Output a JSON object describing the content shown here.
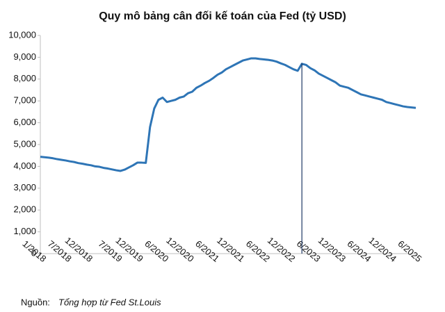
{
  "chart_data": {
    "type": "line",
    "title": "Quy mô bảng cân đối kế toán của Fed (tỷ USD)",
    "x": [
      "1/2018",
      "2/2018",
      "3/2018",
      "4/2018",
      "5/2018",
      "6/2018",
      "7/2018",
      "8/2018",
      "9/2018",
      "10/2018",
      "11/2018",
      "12/2018",
      "1/2019",
      "2/2019",
      "3/2019",
      "4/2019",
      "5/2019",
      "6/2019",
      "7/2019",
      "8/2019",
      "9/2019",
      "10/2019",
      "11/2019",
      "12/2019",
      "1/2020",
      "2/2020",
      "3/2020",
      "4/2020",
      "5/2020",
      "6/2020",
      "7/2020",
      "8/2020",
      "9/2020",
      "10/2020",
      "11/2020",
      "12/2020",
      "1/2021",
      "2/2021",
      "3/2021",
      "4/2021",
      "5/2021",
      "6/2021",
      "7/2021",
      "8/2021",
      "9/2021",
      "10/2021",
      "11/2021",
      "12/2021",
      "1/2022",
      "2/2022",
      "3/2022",
      "4/2022",
      "5/2022",
      "6/2022",
      "7/2022",
      "8/2022",
      "9/2022",
      "10/2022",
      "11/2022",
      "12/2022",
      "1/2023",
      "2/2023",
      "3/2023",
      "4/2023",
      "5/2023",
      "6/2023",
      "7/2023",
      "8/2023",
      "9/2023",
      "10/2023",
      "11/2023",
      "12/2023",
      "1/2024",
      "2/2024",
      "3/2024",
      "4/2024",
      "5/2024",
      "6/2024",
      "7/2024",
      "8/2024",
      "9/2024",
      "10/2024",
      "11/2024",
      "12/2024",
      "1/2025",
      "2/2025",
      "3/2025",
      "4/2025",
      "5/2025",
      "6/2025"
    ],
    "series": [
      {
        "color": "#2e75b6",
        "values": [
          4440,
          4420,
          4400,
          4370,
          4330,
          4300,
          4270,
          4230,
          4200,
          4150,
          4120,
          4080,
          4050,
          4000,
          3980,
          3930,
          3900,
          3860,
          3820,
          3790,
          3850,
          3950,
          4050,
          4170,
          4170,
          4160,
          5800,
          6650,
          7050,
          7150,
          6950,
          7000,
          7050,
          7150,
          7200,
          7350,
          7420,
          7600,
          7700,
          7820,
          7920,
          8050,
          8200,
          8300,
          8450,
          8550,
          8650,
          8750,
          8850,
          8900,
          8950,
          8950,
          8920,
          8900,
          8880,
          8850,
          8800,
          8720,
          8650,
          8550,
          8450,
          8380,
          8700,
          8650,
          8500,
          8400,
          8250,
          8150,
          8050,
          7950,
          7850,
          7700,
          7650,
          7600,
          7500,
          7400,
          7300,
          7250,
          7200,
          7150,
          7100,
          7050,
          6950,
          6900,
          6850,
          6800,
          6750,
          6720,
          6700,
          6680
        ]
      }
    ],
    "xticks": [
      "1/2018",
      "7/2018",
      "12/2018",
      "7/2019",
      "12/2019",
      "6/2020",
      "12/2020",
      "6/2021",
      "12/2021",
      "6/2022",
      "12/2022",
      "6/2023",
      "12/2023",
      "6/2024",
      "12/2024",
      "6/2025"
    ],
    "ylim": [
      0,
      10000
    ],
    "yticks": [
      0,
      {
        "value": 1000,
        "label": "1,000"
      },
      {
        "value": 2000,
        "label": "2,000"
      },
      {
        "value": 3000,
        "label": "3,000"
      },
      {
        "value": 4000,
        "label": "4,000"
      },
      {
        "value": 5000,
        "label": "5,000"
      },
      {
        "value": 6000,
        "label": "6,000"
      },
      {
        "value": 7000,
        "label": "7,000"
      },
      {
        "value": 8000,
        "label": "8,000"
      },
      {
        "value": 9000,
        "label": "9,000"
      },
      {
        "value": 10000,
        "label": "10,000"
      }
    ],
    "grid": false,
    "reference_line": {
      "x": "3/2023",
      "color": "#1f3864"
    },
    "source_label": "Nguồn:",
    "source": "Tổng hợp từ Fed St.Louis"
  }
}
